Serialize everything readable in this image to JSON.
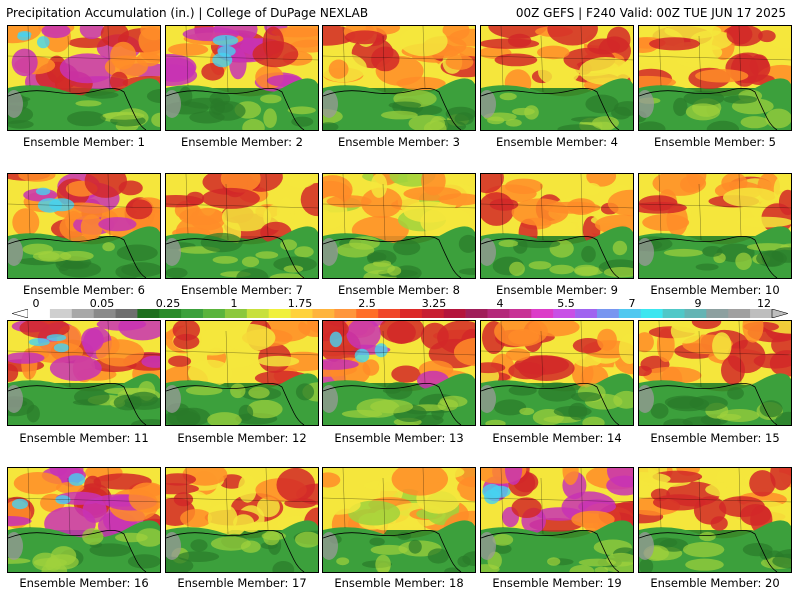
{
  "header": {
    "left": "Precipitation Accumulation (in.) | College of DuPage NEXLAB",
    "right": "00Z GEFS | F240 Valid: 00Z TUE JUN 17 2025"
  },
  "colorbar": {
    "labels": [
      "0",
      "0.05",
      "0.25",
      "1",
      "1.75",
      "2.5",
      "3.25",
      "4",
      "5.5",
      "7",
      "9",
      "12"
    ],
    "colors": [
      "#ffffff",
      "#cfcfcf",
      "#a8a8a8",
      "#8a8a8a",
      "#6e6e6e",
      "#1e6e1e",
      "#2a8a2a",
      "#3ca03c",
      "#5ab43c",
      "#8cc83c",
      "#c8e03c",
      "#f0f03c",
      "#ffd23c",
      "#ffb43c",
      "#ff963c",
      "#ff6e28",
      "#f04628",
      "#dc2828",
      "#c81e32",
      "#b4143c",
      "#a01e5a",
      "#b4287a",
      "#c83296",
      "#dc3cc8",
      "#c850e6",
      "#a064f0",
      "#7896f0",
      "#50c8f0",
      "#3ce6f0",
      "#50c8c8",
      "#64b4b4",
      "#8ca0a0",
      "#a0a0a0",
      "#bebebe"
    ]
  },
  "members": [
    {
      "label": "Ensemble Member: 1",
      "hot": [
        "magenta",
        "red",
        "orange"
      ]
    },
    {
      "label": "Ensemble Member: 2",
      "hot": [
        "magenta",
        "red",
        "orange"
      ]
    },
    {
      "label": "Ensemble Member: 3",
      "hot": [
        "red",
        "orange",
        "yellow"
      ]
    },
    {
      "label": "Ensemble Member: 4",
      "hot": [
        "red",
        "orange",
        "yellow"
      ]
    },
    {
      "label": "Ensemble Member: 5",
      "hot": [
        "red",
        "orange",
        "yellow"
      ]
    },
    {
      "label": "Ensemble Member: 6",
      "hot": [
        "magenta",
        "red",
        "orange"
      ]
    },
    {
      "label": "Ensemble Member: 7",
      "hot": [
        "red",
        "orange",
        "yellow"
      ]
    },
    {
      "label": "Ensemble Member: 8",
      "hot": [
        "orange",
        "yellow",
        "lime"
      ]
    },
    {
      "label": "Ensemble Member: 9",
      "hot": [
        "red",
        "orange",
        "yellow"
      ]
    },
    {
      "label": "Ensemble Member: 10",
      "hot": [
        "red",
        "orange",
        "yellow"
      ]
    },
    {
      "label": "Ensemble Member: 11",
      "hot": [
        "magenta",
        "red",
        "orange"
      ]
    },
    {
      "label": "Ensemble Member: 12",
      "hot": [
        "red",
        "orange",
        "yellow"
      ]
    },
    {
      "label": "Ensemble Member: 13",
      "hot": [
        "magenta",
        "red",
        "orange"
      ]
    },
    {
      "label": "Ensemble Member: 14",
      "hot": [
        "red",
        "orange",
        "yellow"
      ]
    },
    {
      "label": "Ensemble Member: 15",
      "hot": [
        "red",
        "orange",
        "yellow"
      ]
    },
    {
      "label": "Ensemble Member: 16",
      "hot": [
        "magenta",
        "red",
        "orange"
      ]
    },
    {
      "label": "Ensemble Member: 17",
      "hot": [
        "red",
        "orange",
        "yellow"
      ]
    },
    {
      "label": "Ensemble Member: 18",
      "hot": [
        "orange",
        "yellow",
        "lime"
      ]
    },
    {
      "label": "Ensemble Member: 19",
      "hot": [
        "magenta",
        "red",
        "orange"
      ]
    },
    {
      "label": "Ensemble Member: 20",
      "hot": [
        "red",
        "orange",
        "yellow"
      ]
    }
  ]
}
